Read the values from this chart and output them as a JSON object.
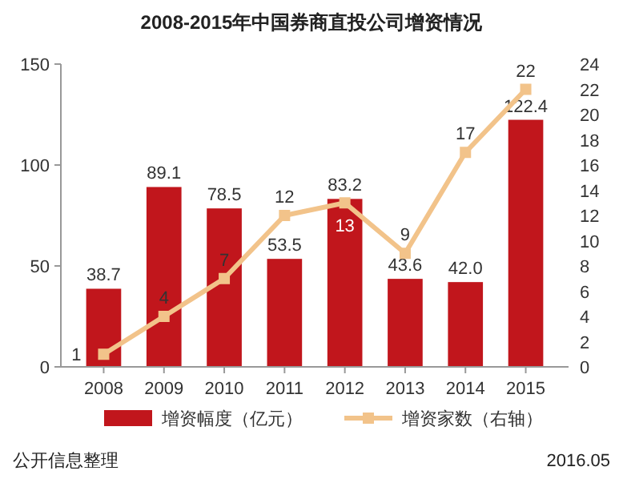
{
  "chart_data": {
    "type": "bar",
    "title": "2008-2015年中国券商直投公司增资情况",
    "categories": [
      "2008",
      "2009",
      "2010",
      "2011",
      "2012",
      "2013",
      "2014",
      "2015"
    ],
    "series": [
      {
        "name": "增资幅度（亿元）",
        "color": "#c1161c",
        "values": [
          38.7,
          89.1,
          78.5,
          53.5,
          83.2,
          43.6,
          42.0,
          122.4
        ],
        "value_labels": [
          "38.7",
          "89.1",
          "78.5",
          "53.5",
          "83.2",
          "43.6",
          "42.0",
          "122.4"
        ]
      },
      {
        "name": "增资家数（右轴）",
        "type": "line",
        "axis": "y2",
        "color": "#f2c38a",
        "marker": "square",
        "values": [
          1,
          4,
          7,
          12,
          13,
          9,
          17,
          22
        ],
        "value_labels": [
          "1",
          "4",
          "7",
          "12",
          "13",
          "9",
          "17",
          "22"
        ]
      }
    ],
    "ylim": [
      0,
      150
    ],
    "yticks": [
      0,
      50,
      100,
      150
    ],
    "y2lim": [
      0,
      24
    ],
    "y2ticks": [
      0,
      2,
      4,
      6,
      8,
      10,
      12,
      14,
      16,
      18,
      20,
      22,
      24
    ],
    "legend": "bottom",
    "annotations": [
      "公开信息整理",
      "2016.05"
    ]
  }
}
